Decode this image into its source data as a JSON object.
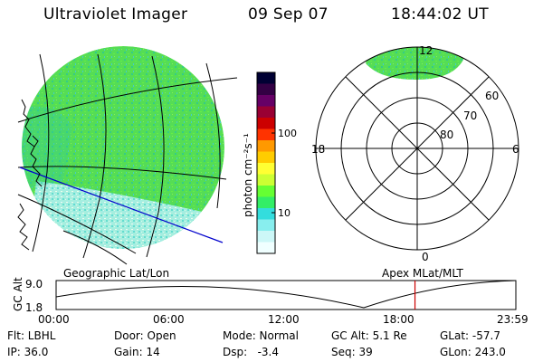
{
  "header": {
    "instrument": "Ultraviolet Imager",
    "date": "09 Sep 07",
    "time": "18:44:02 UT"
  },
  "image_panel": {
    "projection_label": "Geographic Lat/Lon"
  },
  "colorbar": {
    "unit_label": "photon cm⁻²s⁻¹",
    "ticks": [
      "100",
      "10"
    ],
    "colors": [
      "#000033",
      "#330044",
      "#660066",
      "#990033",
      "#cc0000",
      "#ff3300",
      "#ff9900",
      "#ffcc00",
      "#ffff33",
      "#ccff33",
      "#66ff33",
      "#33ee66",
      "#33dddd",
      "#88eeee",
      "#ccf7f7",
      "#f0ffff"
    ]
  },
  "polar_plot": {
    "projection_label": "Apex MLat/MLT",
    "mlt_labels": {
      "top": "12",
      "left": "18",
      "right": "6",
      "bottom": "0"
    },
    "lat_labels": [
      "60",
      "70",
      "80"
    ]
  },
  "altitude_plot": {
    "axis_label": "GC Alt",
    "y_ticks": [
      "9.0",
      "1.8"
    ],
    "x_ticks": [
      "00:00",
      "06:00",
      "12:00",
      "18:00",
      "23:59"
    ],
    "current_time_fraction": 0.7806
  },
  "footer": {
    "row1": {
      "filter": "Flt: LBHL",
      "door": "Door: Open",
      "mode": "Mode: Normal",
      "gc_alt": "GC Alt: 5.1 Re",
      "glat": "GLat: -57.7"
    },
    "row2": {
      "ip": "IP: 36.0",
      "gain": "Gain: 14",
      "dsp": "Dsp:   -3.4",
      "seq": "Seq: 39",
      "glon": "GLon: 243.0"
    }
  },
  "colors": {
    "aurora_base": "#44dd44",
    "aurora_light": "#aaeeee",
    "track_line": "#0000cc",
    "time_marker": "#cc0000"
  }
}
